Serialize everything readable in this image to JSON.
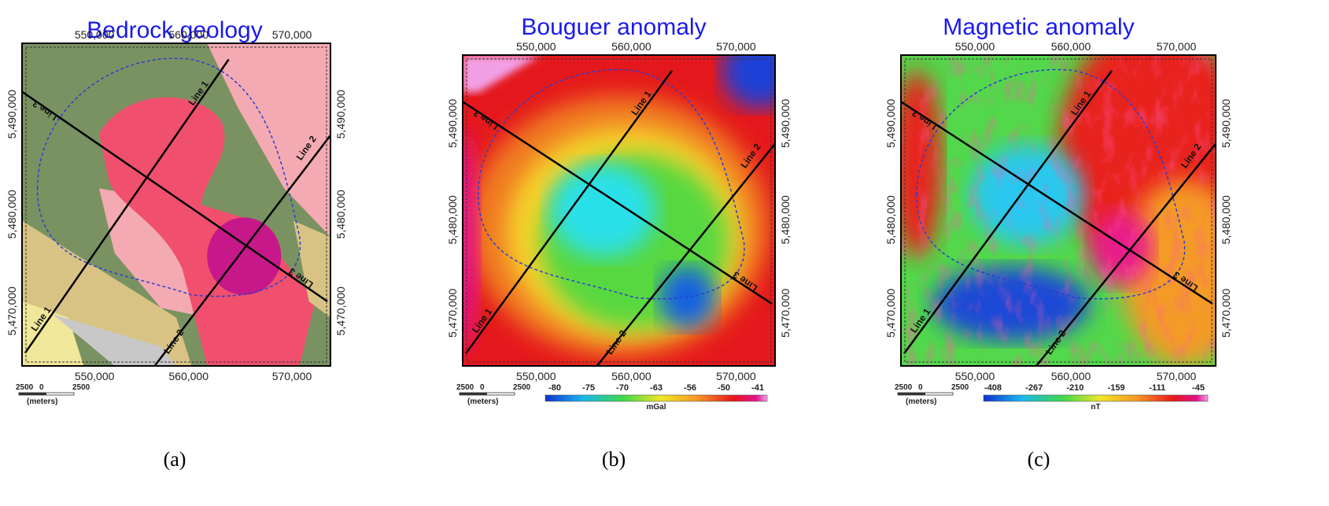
{
  "panels": [
    {
      "title": "Bedrock geology",
      "caption": "(a)",
      "x_ticks": [
        "550,000",
        "560,000",
        "570,000"
      ],
      "y_ticks": [
        "5,490,000",
        "5,480,000",
        "5,470,000"
      ],
      "line_labels": [
        "Line 1",
        "Line 2",
        "Line 3"
      ],
      "scale_bar": {
        "labels": [
          "2500",
          "0",
          "2500"
        ],
        "unit": "(meters)"
      }
    },
    {
      "title": "Bouguer anomaly",
      "caption": "(b)",
      "x_ticks": [
        "550,000",
        "560,000",
        "570,000"
      ],
      "y_ticks": [
        "5,490,000",
        "5,480,000",
        "5,470,000"
      ],
      "line_labels": [
        "Line 1",
        "Line 2",
        "Line 3"
      ],
      "scale_bar": {
        "labels": [
          "2500",
          "0",
          "2500"
        ],
        "unit": "(meters)"
      },
      "colorbar": {
        "ticks": [
          "-80",
          "-75",
          "-70",
          "-63",
          "-56",
          "-50",
          "-41"
        ],
        "unit": "mGal"
      }
    },
    {
      "title": "Magnetic anomaly",
      "caption": "(c)",
      "x_ticks": [
        "550,000",
        "560,000",
        "570,000"
      ],
      "y_ticks": [
        "5,490,000",
        "5,480,000",
        "5,470,000"
      ],
      "line_labels": [
        "Line 1",
        "Line 2",
        "Line 3"
      ],
      "scale_bar": {
        "labels": [
          "2500",
          "0",
          "2500"
        ],
        "unit": "(meters)"
      },
      "colorbar": {
        "ticks": [
          "-408",
          "-267",
          "-210",
          "-159",
          "-111",
          "-45"
        ],
        "unit": "nT"
      }
    }
  ]
}
